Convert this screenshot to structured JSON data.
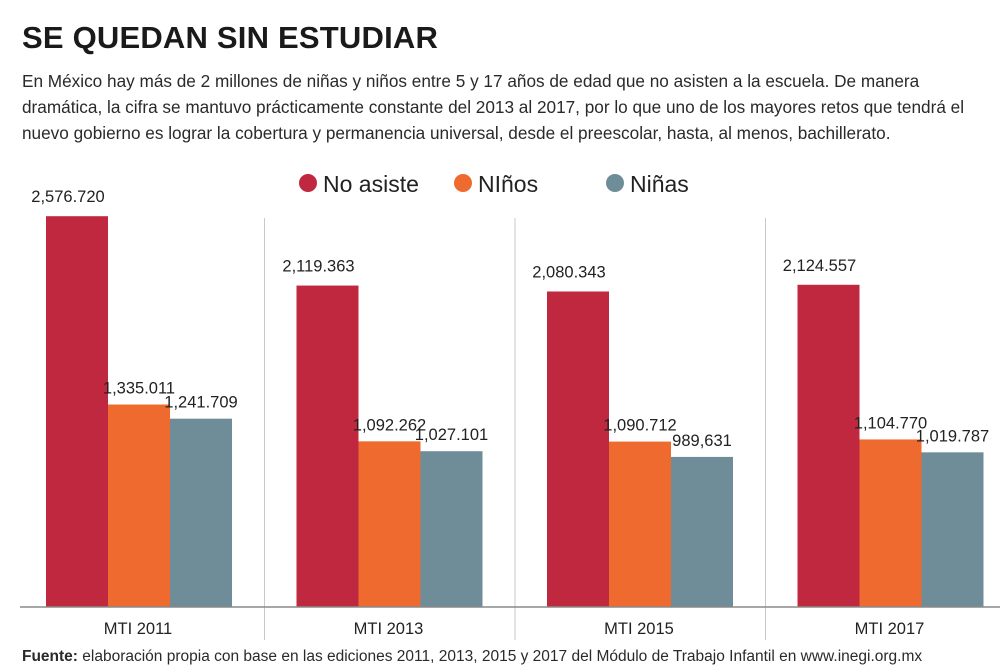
{
  "header": {
    "title": "SE QUEDAN SIN ESTUDIAR",
    "subtitle": "En México hay más de 2 millones de niñas y niños entre 5 y 17 años de edad que no asisten a la escuela. De manera dramática, la cifra se mantuvo prácticamente constante del 2013 al 2017, por lo que uno de los mayores retos que tendrá el nuevo gobierno es lograr la cobertura y permanencia universal, desde el preescolar, hasta, al menos, bachillerato."
  },
  "footer": {
    "source_label": "Fuente:",
    "source_text": " elaboración propia con base en las ediciones 2011, 2013, 2015 y 2017 del Módulo de Trabajo Infantil en www.inegi.org.mx"
  },
  "chart_data": {
    "type": "bar",
    "categories": [
      "MTI 2011",
      "MTI 2013",
      "MTI 2015",
      "MTI 2017"
    ],
    "series": [
      {
        "name": "No asiste",
        "color": "#c0283f",
        "values": [
          2576720,
          2119363,
          2080343,
          2124557
        ],
        "labels": [
          "2,576.720",
          "2,119.363",
          "2,080.343",
          "2,124.557"
        ]
      },
      {
        "name": "NIños",
        "color": "#ee6a2e",
        "values": [
          1335011,
          1092262,
          1090712,
          1104770
        ],
        "labels": [
          "1,335.011",
          "1,092.262",
          "1,090.712",
          "1,104.770"
        ]
      },
      {
        "name": "Niñas",
        "color": "#6f8c99",
        "values": [
          1241709,
          1027101,
          989631,
          1019787
        ],
        "labels": [
          "1,241.709",
          "1,027.101",
          "989,631",
          "1,019.787"
        ]
      }
    ],
    "ylim": [
      0,
      3000000
    ],
    "legend_position": "top-center",
    "grid": false
  }
}
